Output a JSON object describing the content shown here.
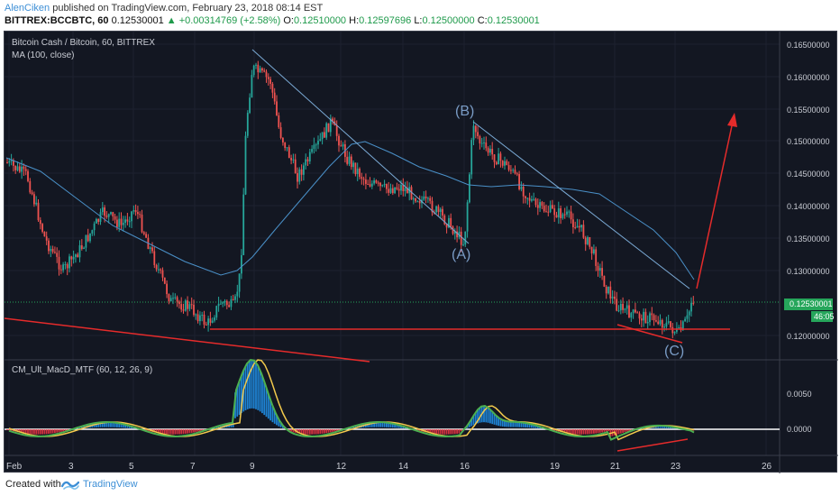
{
  "header": {
    "author": "AlenCiken",
    "published": "published on TradingView.com, February 23, 2018 08:14 EST",
    "symbol": "BITTREX:BCCBTC, 60",
    "last": "0.12530001",
    "change": "▲ +0.00314769 (+2.58%)",
    "o_label": "O:",
    "o": "0.12510000",
    "h_label": "H:",
    "h": "0.12597696",
    "l_label": "L:",
    "l": "0.12500000",
    "c_label": "C:",
    "c": "0.12530001"
  },
  "chart": {
    "title": "Bitcoin Cash / Bitcoin, 60, BITTREX",
    "ma_title": "MA (100, close)",
    "indicator_title": "CM_Ult_MacD_MTF (60, 12, 26, 9)",
    "price_ticks": [
      "0.16500000",
      "0.16000000",
      "0.15500000",
      "0.15000000",
      "0.14500000",
      "0.14000000",
      "0.13500000",
      "0.13000000",
      "0.12000000"
    ],
    "current_price": "0.12530001",
    "countdown": "46:05",
    "macd_ticks": [
      "0.0050",
      "0.0000"
    ],
    "x_ticks": [
      "Feb",
      "3",
      "5",
      "7",
      "9",
      "12",
      "14",
      "16",
      "19",
      "21",
      "23",
      "26"
    ],
    "wave_labels": [
      "(A)",
      "(B)",
      "(C)"
    ]
  },
  "footer": {
    "created_with": "Created with",
    "brand": "TradingView"
  },
  "colors": {
    "background": "#131722",
    "up": "#26a69a",
    "down": "#ef5350",
    "ma": "#4a90c8",
    "annotation": "#e52b2b",
    "trendline": "#7aa9d4"
  }
}
